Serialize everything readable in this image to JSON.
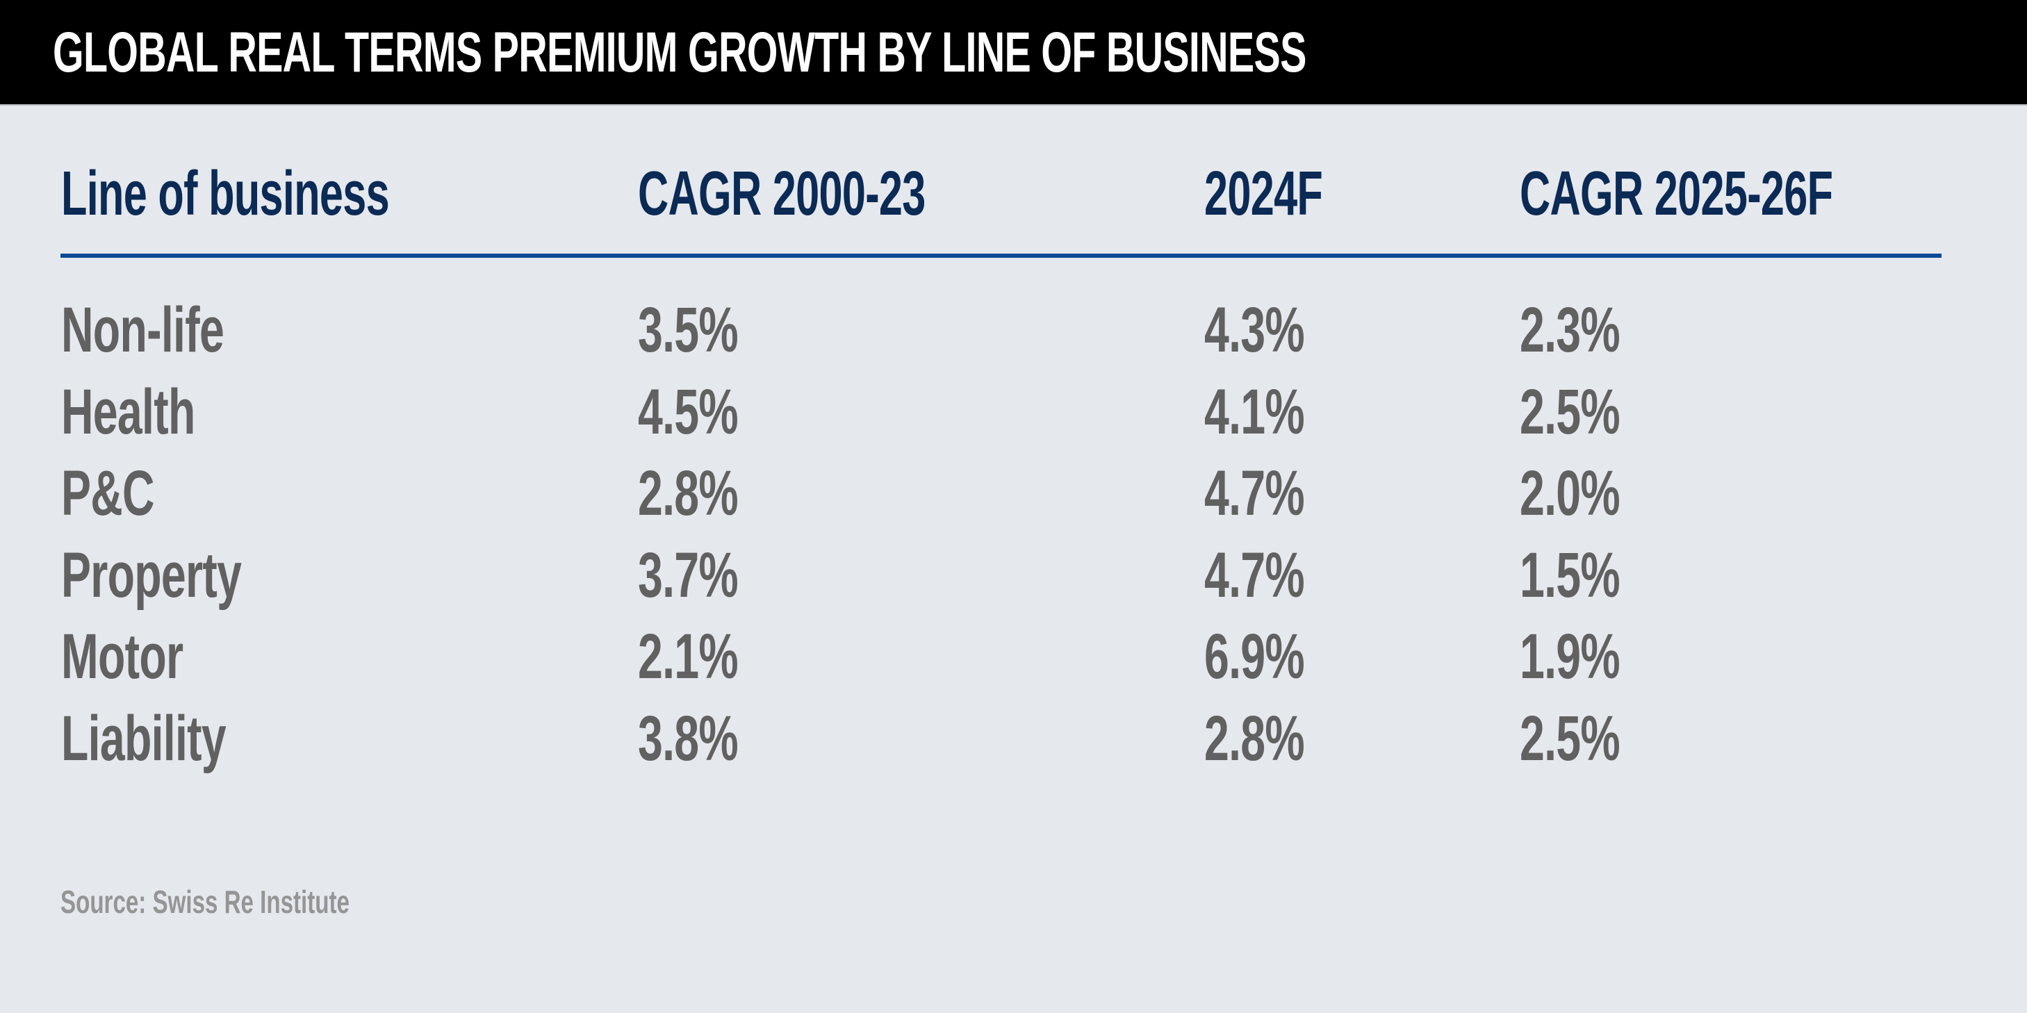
{
  "title": "GLOBAL REAL TERMS PREMIUM GROWTH BY LINE OF BUSINESS",
  "source": "Source: Swiss Re Institute",
  "colors": {
    "title_bg": "#000000",
    "title_text": "#ffffff",
    "background": "#e5e8ed",
    "header_text": "#0b2a55",
    "rule": "#0b4a95",
    "value_text": "#616161",
    "source_text": "#959595"
  },
  "chart_data": {
    "type": "table",
    "title": "GLOBAL REAL TERMS PREMIUM GROWTH BY LINE OF BUSINESS",
    "columns": [
      "Line of business",
      "CAGR 2000-23",
      "2024F",
      "CAGR 2025-26F"
    ],
    "rows": [
      [
        "Non-life",
        "3.5%",
        "4.3%",
        "2.3%"
      ],
      [
        "Health",
        "4.5%",
        "4.1%",
        "2.5%"
      ],
      [
        "P&C",
        "2.8%",
        "4.7%",
        "2.0%"
      ],
      [
        "Property",
        "3.7%",
        "4.7%",
        "1.5%"
      ],
      [
        "Motor",
        "2.1%",
        "6.9%",
        "1.9%"
      ],
      [
        "Liability",
        "3.8%",
        "2.8%",
        "2.5%"
      ]
    ],
    "series": [
      {
        "name": "CAGR 2000-23",
        "values": [
          3.5,
          4.5,
          2.8,
          3.7,
          2.1,
          3.8
        ]
      },
      {
        "name": "2024F",
        "values": [
          4.3,
          4.1,
          4.7,
          4.7,
          6.9,
          2.8
        ]
      },
      {
        "name": "CAGR 2025-26F",
        "values": [
          2.3,
          2.5,
          2.0,
          1.5,
          1.9,
          2.5
        ]
      }
    ],
    "categories": [
      "Non-life",
      "Health",
      "P&C",
      "Property",
      "Motor",
      "Liability"
    ],
    "unit": "%",
    "source": "Source: Swiss Re Institute"
  }
}
